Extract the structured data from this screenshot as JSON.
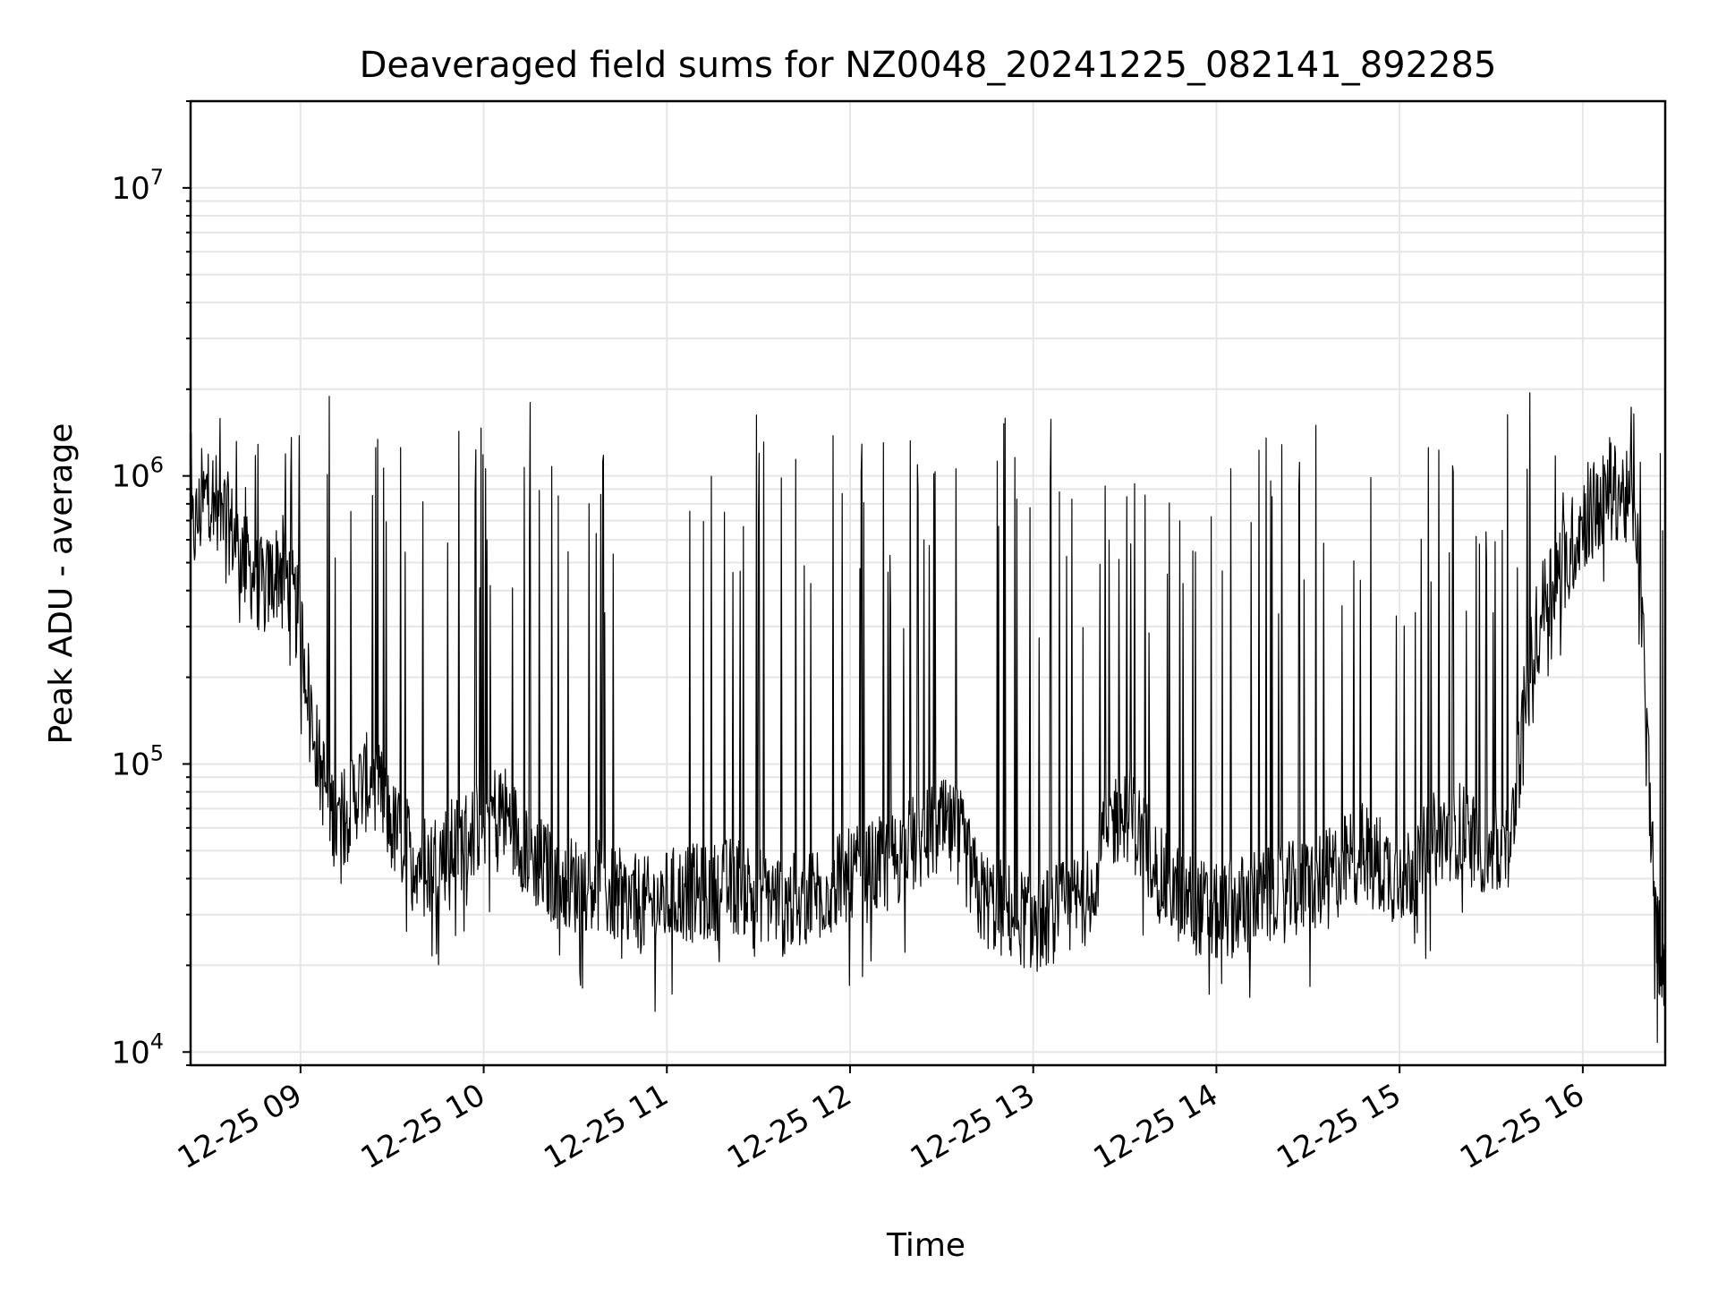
{
  "chart_data": {
    "type": "line",
    "title": "Deaveraged field sums for NZ0048_20241225_082141_892285",
    "xlabel": "Time",
    "ylabel": "Peak ADU - average",
    "yscale": "log",
    "ylim": [
      9000,
      20000000
    ],
    "xlim": [
      "2024-12-25 08:24",
      "2024-12-25 16:27"
    ],
    "grid": true,
    "x_tick_labels": [
      "12-25 09",
      "12-25 10",
      "12-25 11",
      "12-25 12",
      "12-25 13",
      "12-25 14",
      "12-25 15",
      "12-25 16"
    ],
    "y_tick_labels": [
      {
        "base": "10",
        "exp": "4",
        "value": 10000
      },
      {
        "base": "10",
        "exp": "5",
        "value": 100000
      },
      {
        "base": "10",
        "exp": "6",
        "value": 1000000
      },
      {
        "base": "10",
        "exp": "7",
        "value": 10000000
      }
    ],
    "series": [
      {
        "color": "#000000",
        "x": [
          "2024-12-25 08:24",
          "2024-12-25 08:30",
          "2024-12-25 08:36",
          "2024-12-25 08:42",
          "2024-12-25 08:48",
          "2024-12-25 08:54",
          "2024-12-25 09:00",
          "2024-12-25 09:06",
          "2024-12-25 09:12",
          "2024-12-25 09:18",
          "2024-12-25 09:24",
          "2024-12-25 09:30",
          "2024-12-25 09:36",
          "2024-12-25 09:42",
          "2024-12-25 09:48",
          "2024-12-25 09:54",
          "2024-12-25 10:00",
          "2024-12-25 10:06",
          "2024-12-25 10:12",
          "2024-12-25 10:18",
          "2024-12-25 10:24",
          "2024-12-25 10:30",
          "2024-12-25 10:36",
          "2024-12-25 10:42",
          "2024-12-25 10:48",
          "2024-12-25 10:54",
          "2024-12-25 11:00",
          "2024-12-25 11:06",
          "2024-12-25 11:12",
          "2024-12-25 11:18",
          "2024-12-25 11:24",
          "2024-12-25 11:30",
          "2024-12-25 11:36",
          "2024-12-25 11:42",
          "2024-12-25 11:48",
          "2024-12-25 11:54",
          "2024-12-25 12:00",
          "2024-12-25 12:06",
          "2024-12-25 12:12",
          "2024-12-25 12:18",
          "2024-12-25 12:24",
          "2024-12-25 12:30",
          "2024-12-25 12:36",
          "2024-12-25 12:42",
          "2024-12-25 12:48",
          "2024-12-25 12:54",
          "2024-12-25 13:00",
          "2024-12-25 13:06",
          "2024-12-25 13:12",
          "2024-12-25 13:18",
          "2024-12-25 13:24",
          "2024-12-25 13:30",
          "2024-12-25 13:36",
          "2024-12-25 13:42",
          "2024-12-25 13:48",
          "2024-12-25 13:54",
          "2024-12-25 14:00",
          "2024-12-25 14:06",
          "2024-12-25 14:12",
          "2024-12-25 14:18",
          "2024-12-25 14:24",
          "2024-12-25 14:30",
          "2024-12-25 14:36",
          "2024-12-25 14:42",
          "2024-12-25 14:48",
          "2024-12-25 14:54",
          "2024-12-25 15:00",
          "2024-12-25 15:06",
          "2024-12-25 15:12",
          "2024-12-25 15:18",
          "2024-12-25 15:24",
          "2024-12-25 15:30",
          "2024-12-25 15:36",
          "2024-12-25 15:42",
          "2024-12-25 15:48",
          "2024-12-25 15:54",
          "2024-12-25 16:00",
          "2024-12-25 16:06",
          "2024-12-25 16:12",
          "2024-12-25 16:18",
          "2024-12-25 16:24",
          "2024-12-25 16:27"
        ],
        "y": [
          600000,
          900000,
          700000,
          500000,
          400000,
          500000,
          300000,
          100000,
          60000,
          80000,
          90000,
          60000,
          50000,
          45000,
          50000,
          55000,
          65000,
          70000,
          55000,
          45000,
          40000,
          38000,
          40000,
          35000,
          33000,
          32000,
          34000,
          36000,
          35000,
          37000,
          38000,
          36000,
          34000,
          33000,
          36000,
          38000,
          40000,
          42000,
          45000,
          50000,
          55000,
          60000,
          55000,
          35000,
          32000,
          30000,
          28000,
          30000,
          32000,
          35000,
          60000,
          70000,
          55000,
          40000,
          35000,
          32000,
          30000,
          32000,
          34000,
          35000,
          36000,
          38000,
          40000,
          45000,
          50000,
          45000,
          40000,
          45000,
          55000,
          60000,
          55000,
          50000,
          50000,
          200000,
          400000,
          500000,
          700000,
          800000,
          900000,
          700000,
          25000,
          20000
        ]
      }
    ]
  }
}
